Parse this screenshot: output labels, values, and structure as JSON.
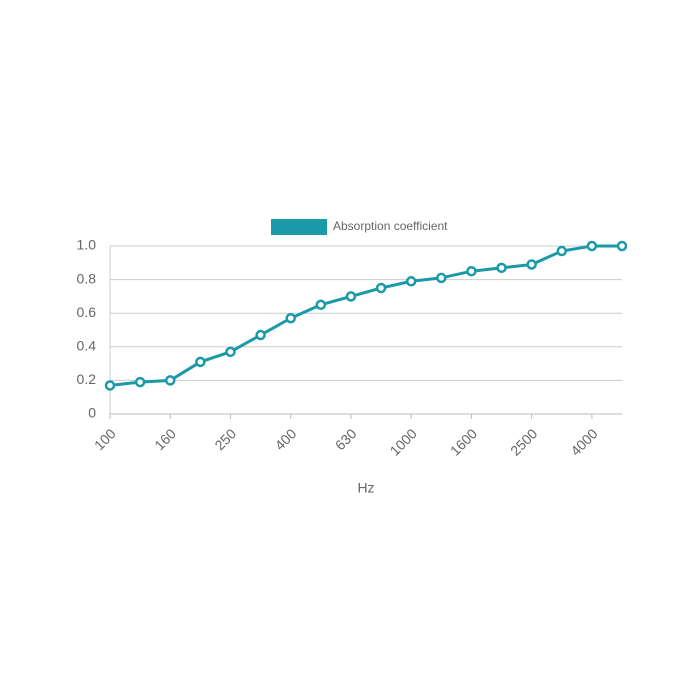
{
  "chart_data": {
    "type": "line",
    "x_label": "Hz",
    "categories": [
      "100",
      null,
      "160",
      null,
      "250",
      null,
      "400",
      null,
      "630",
      null,
      "1000",
      null,
      "1600",
      null,
      "2500",
      null,
      "4000",
      null
    ],
    "series": [
      {
        "name": "Absorption coefficient",
        "color": "#1a9aa8",
        "values": [
          0.17,
          0.19,
          0.2,
          0.31,
          0.37,
          0.47,
          0.57,
          0.65,
          0.7,
          0.75,
          0.79,
          0.81,
          0.85,
          0.87,
          0.89,
          0.97,
          1.0,
          1.0
        ]
      }
    ],
    "ylim": [
      0,
      1.0
    ],
    "yticks": [
      0,
      0.2,
      0.4,
      0.6,
      0.8,
      {
        "value": 1.0,
        "label": "1.0"
      }
    ],
    "grid": true,
    "legend": "top"
  }
}
